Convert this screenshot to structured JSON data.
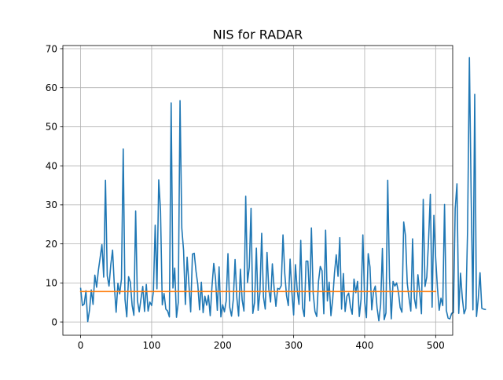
{
  "chart_data": {
    "type": "line",
    "title": "NIS for RADAR",
    "xlabel": "",
    "ylabel": "",
    "xlim": [
      -25,
      524
    ],
    "ylim": [
      -3.4,
      70.8
    ],
    "xticks": [
      0,
      100,
      200,
      300,
      400,
      500
    ],
    "yticks": [
      0,
      10,
      20,
      30,
      40,
      50,
      60,
      70
    ],
    "grid": true,
    "colors": {
      "series": "#1f77b4",
      "threshold": "#ff7f0e"
    },
    "series": [
      {
        "kind": "nis",
        "color": "#1f77b4",
        "x_start": 0,
        "x_step": 2.5,
        "values": [
          8.6,
          4.2,
          4.6,
          8.0,
          0.1,
          3.0,
          8.2,
          4.5,
          12.0,
          8.9,
          13.2,
          16.5,
          19.8,
          11.5,
          36.3,
          11.8,
          9.2,
          14.7,
          18.4,
          9.2,
          2.5,
          9.9,
          7.2,
          11.0,
          44.3,
          5.8,
          1.3,
          11.6,
          10.2,
          4.3,
          1.7,
          28.4,
          5.5,
          2.6,
          5.9,
          9.1,
          2.7,
          9.6,
          2.8,
          5.1,
          4.2,
          7.8,
          24.8,
          8.5,
          36.4,
          28.5,
          4.4,
          7.3,
          3.3,
          2.8,
          1.3,
          56.1,
          8.7,
          13.8,
          1.2,
          5.0,
          56.7,
          24.0,
          18.3,
          4.5,
          16.6,
          9.6,
          2.6,
          17.4,
          17.6,
          13.0,
          9.6,
          3.1,
          10.2,
          2.4,
          6.6,
          4.3,
          6.8,
          1.6,
          9.1,
          15.0,
          11.1,
          3.0,
          14.1,
          1.3,
          4.4,
          2.6,
          5.4,
          17.5,
          3.8,
          1.5,
          5.7,
          16.0,
          6.2,
          1.5,
          13.5,
          5.6,
          2.8,
          32.2,
          10.1,
          14.0,
          29.1,
          2.2,
          5.0,
          18.9,
          3.0,
          7.6,
          22.7,
          6.4,
          3.3,
          17.8,
          8.4,
          5.1,
          14.9,
          8.6,
          4.0,
          8.6,
          8.4,
          9.3,
          22.3,
          12.4,
          6.7,
          4.2,
          16.1,
          7.6,
          1.8,
          14.7,
          8.2,
          4.5,
          20.9,
          3.7,
          1.4,
          15.6,
          15.6,
          5.4,
          24.1,
          7.4,
          2.7,
          1.4,
          10.4,
          14.2,
          13.1,
          2.1,
          23.5,
          5.4,
          10.2,
          1.6,
          5.8,
          12.5,
          17.2,
          11.7,
          21.6,
          3.3,
          12.4,
          2.7,
          6.6,
          7.4,
          3.9,
          2.0,
          11.0,
          7.5,
          10.4,
          1.4,
          5.9,
          22.3,
          5.2,
          1.1,
          17.5,
          14.1,
          3.1,
          7.8,
          9.2,
          3.6,
          0.3,
          4.4,
          18.8,
          0.6,
          2.3,
          36.3,
          11.3,
          0.8,
          10.4,
          9.2,
          10.0,
          7.8,
          3.7,
          2.5,
          25.6,
          22.1,
          9.9,
          6.1,
          2.8,
          21.3,
          6.1,
          3.5,
          12.1,
          7.5,
          2.1,
          31.4,
          9.1,
          11.5,
          20.9,
          32.7,
          3.8,
          27.3,
          16.4,
          8.8,
          3.0,
          6.1,
          4.2,
          30.1,
          3.0,
          1.0,
          0.8,
          2.2,
          2.4,
          29.0,
          35.4,
          2.2,
          12.5,
          6.2,
          2.1,
          3.4,
          23.9,
          67.7,
          32.1,
          3.1,
          58.3,
          1.4,
          6.0,
          12.6,
          3.5,
          3.3,
          3.2
        ]
      },
      {
        "kind": "threshold",
        "color": "#ff7f0e",
        "x": [
          0,
          500
        ],
        "values": [
          7.8,
          7.8
        ]
      }
    ]
  }
}
